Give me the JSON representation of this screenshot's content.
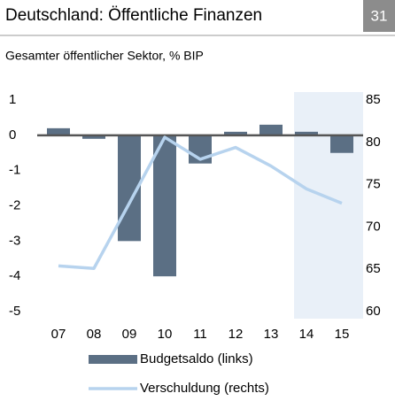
{
  "page_number": "31",
  "chart_data": {
    "type": "bar_line",
    "title": "Deutschland: Öffentliche Finanzen",
    "subtitle": "Gesamter öffentlicher Sektor, % BIP",
    "categories": [
      "07",
      "08",
      "09",
      "10",
      "11",
      "12",
      "13",
      "14",
      "15"
    ],
    "series": [
      {
        "name": "Budgetsaldo (links)",
        "type": "bar",
        "color": "#5b6f84",
        "axis": "y",
        "values": [
          0.2,
          -0.1,
          -3.0,
          -4.0,
          -0.8,
          0.1,
          0.3,
          0.1,
          -0.5
        ]
      },
      {
        "name": "Verschuldung (rechts)",
        "type": "line",
        "color": "#b7d3ee",
        "axis": "y2",
        "values": [
          65.4,
          65.1,
          72.8,
          80.6,
          78.0,
          79.4,
          77.2,
          74.5,
          72.8
        ]
      }
    ],
    "ylim": [
      -5,
      1
    ],
    "yticks": [
      -5,
      -4,
      -3,
      -2,
      -1,
      0,
      1
    ],
    "y2lim": [
      60,
      85
    ],
    "y2ticks": [
      60,
      65,
      70,
      75,
      80,
      85
    ],
    "grid": false
  }
}
